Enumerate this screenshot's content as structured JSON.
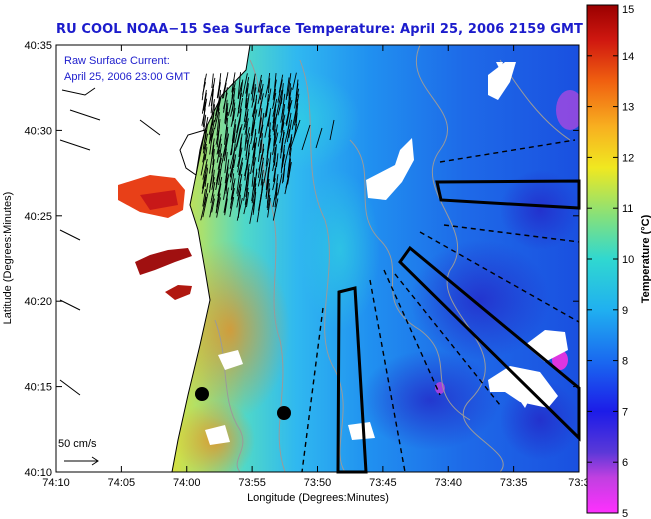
{
  "title": "RU COOL  NOAA−15  Sea Surface Temperature:  April 25, 2006 2159 GMT",
  "map": {
    "annotation_line1": "Raw Surface Current:",
    "annotation_line2": "April 25, 2006 23:00 GMT",
    "scale_label": "50 cm/s",
    "x_label": "Longitude (Degrees:Minutes)",
    "y_label": "Latitude (Degrees:Minutes)",
    "x_ticks": [
      "74:10",
      "74:05",
      "74:00",
      "73:55",
      "73:50",
      "73:45",
      "73:40",
      "73:35",
      "73:3"
    ],
    "y_ticks": [
      "40:35",
      "40:30",
      "40:25",
      "40:20",
      "40:15",
      "40:10"
    ]
  },
  "colorbar": {
    "label": "Temperature (°C)",
    "ticks": [
      "15",
      "14",
      "13",
      "12",
      "11",
      "10",
      "9",
      "8",
      "7",
      "6",
      "5"
    ]
  },
  "colors": {
    "title": "#1c1ccc",
    "annotation": "#1c1ccc",
    "land": "#ffffff",
    "vectors": "#000000"
  }
}
